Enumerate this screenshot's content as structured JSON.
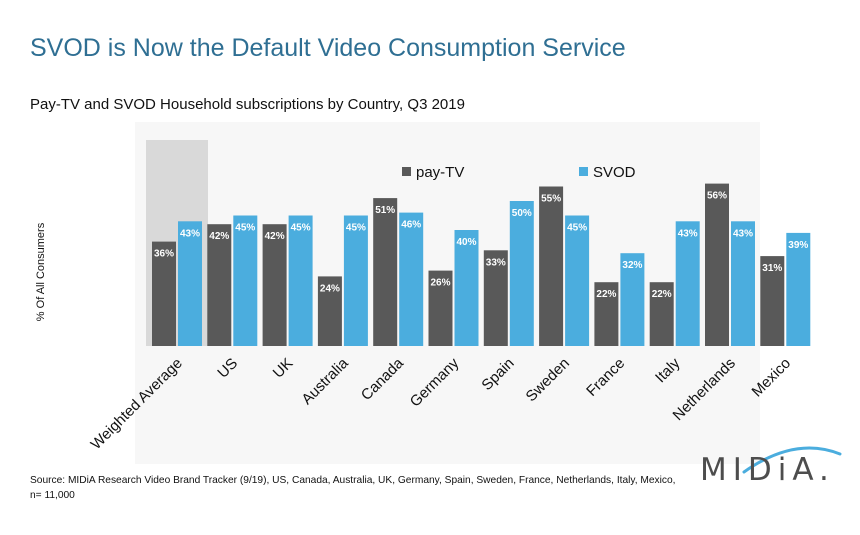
{
  "title": "SVOD is Now the Default Video Consumption Service",
  "subtitle": "Pay-TV and SVOD Household subscriptions by Country, Q3 2019",
  "source": "Source: MIDiA Research Video Brand Tracker (9/19), US, Canada, Australia, UK, Germany, Spain, Sweden, France, Netherlands, Italy, Mexico, n= 11,000",
  "logo_text": "MIDiA.",
  "colors": {
    "title": "#2f6f93",
    "pay_tv": "#595959",
    "svod": "#4badde",
    "highlight": "#d9d9d9",
    "plot_bg": "#f7f7f7"
  },
  "chart_data": {
    "type": "bar",
    "title": "",
    "xlabel": "",
    "ylabel": "% Of All Consumers",
    "categories": [
      "Weighted Average",
      "US",
      "UK",
      "Australia",
      "Canada",
      "Germany",
      "Spain",
      "Sweden",
      "France",
      "Italy",
      "Netherlands",
      "Mexico"
    ],
    "series": [
      {
        "name": "pay-TV",
        "color": "#595959",
        "values": [
          36,
          42,
          42,
          24,
          51,
          26,
          33,
          55,
          22,
          22,
          56,
          31
        ]
      },
      {
        "name": "SVOD",
        "color": "#4badde",
        "values": [
          43,
          45,
          45,
          45,
          46,
          40,
          50,
          45,
          32,
          43,
          43,
          39
        ]
      }
    ],
    "value_format": "percent",
    "ylim": [
      0,
      60
    ],
    "grid": false,
    "legend_position": "top-center",
    "highlighted_category": "Weighted Average"
  }
}
